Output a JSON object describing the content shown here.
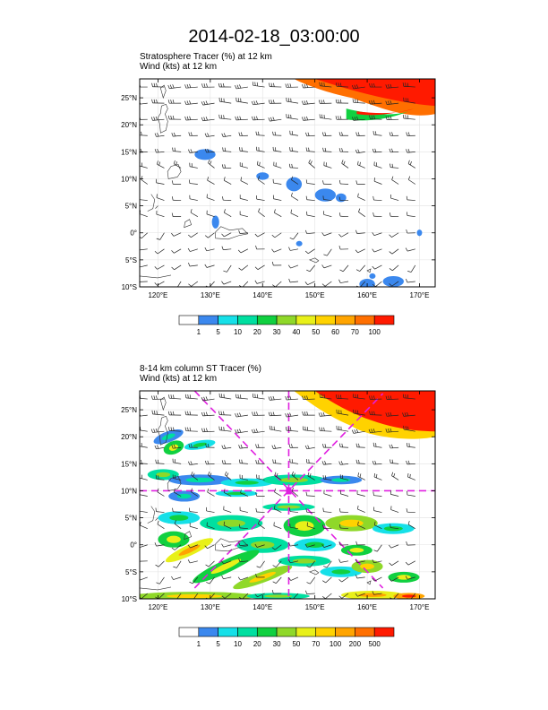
{
  "title": "2014-02-18_03:00:00",
  "panel1": {
    "title_line1": "Stratosphere Tracer   (%)    at   12 km",
    "title_line2": "Wind    (kts)     at   12 km",
    "lat_labels": [
      "25°N",
      "20°N",
      "15°N",
      "10°N",
      "5°N",
      "0°",
      "5°S",
      "10°S"
    ],
    "lon_labels": [
      "120°E",
      "130°E",
      "140°E",
      "150°E",
      "160°E",
      "170°E"
    ],
    "colorbar_labels": [
      "1",
      "5",
      "10",
      "20",
      "30",
      "40",
      "50",
      "60",
      "70",
      "100"
    ],
    "colorbar_colors": [
      "#ffffff",
      "#3b88ee",
      "#16e0e8",
      "#00dfa0",
      "#10d040",
      "#8fd829",
      "#e8f019",
      "#ffd200",
      "#ffa400",
      "#ff6f00",
      "#ff1a00"
    ]
  },
  "panel2": {
    "title_line1": "8-14 km column ST Tracer    (%)",
    "title_line2": "Wind    (kts)     at   12 km",
    "lat_labels": [
      "25°N",
      "20°N",
      "15°N",
      "10°N",
      "5°N",
      "0°",
      "5°S",
      "10°S"
    ],
    "lon_labels": [
      "120°E",
      "130°E",
      "140°E",
      "150°E",
      "160°E",
      "170°E"
    ],
    "colorbar_labels": [
      "1",
      "5",
      "10",
      "20",
      "30",
      "50",
      "70",
      "100",
      "200",
      "500"
    ],
    "colorbar_colors": [
      "#ffffff",
      "#3b88ee",
      "#16e0e8",
      "#00dfa0",
      "#10d040",
      "#8fd829",
      "#e8f019",
      "#ffd200",
      "#ffa400",
      "#ff6f00",
      "#ff1a00"
    ],
    "overlay_color": "#e020e0"
  }
}
